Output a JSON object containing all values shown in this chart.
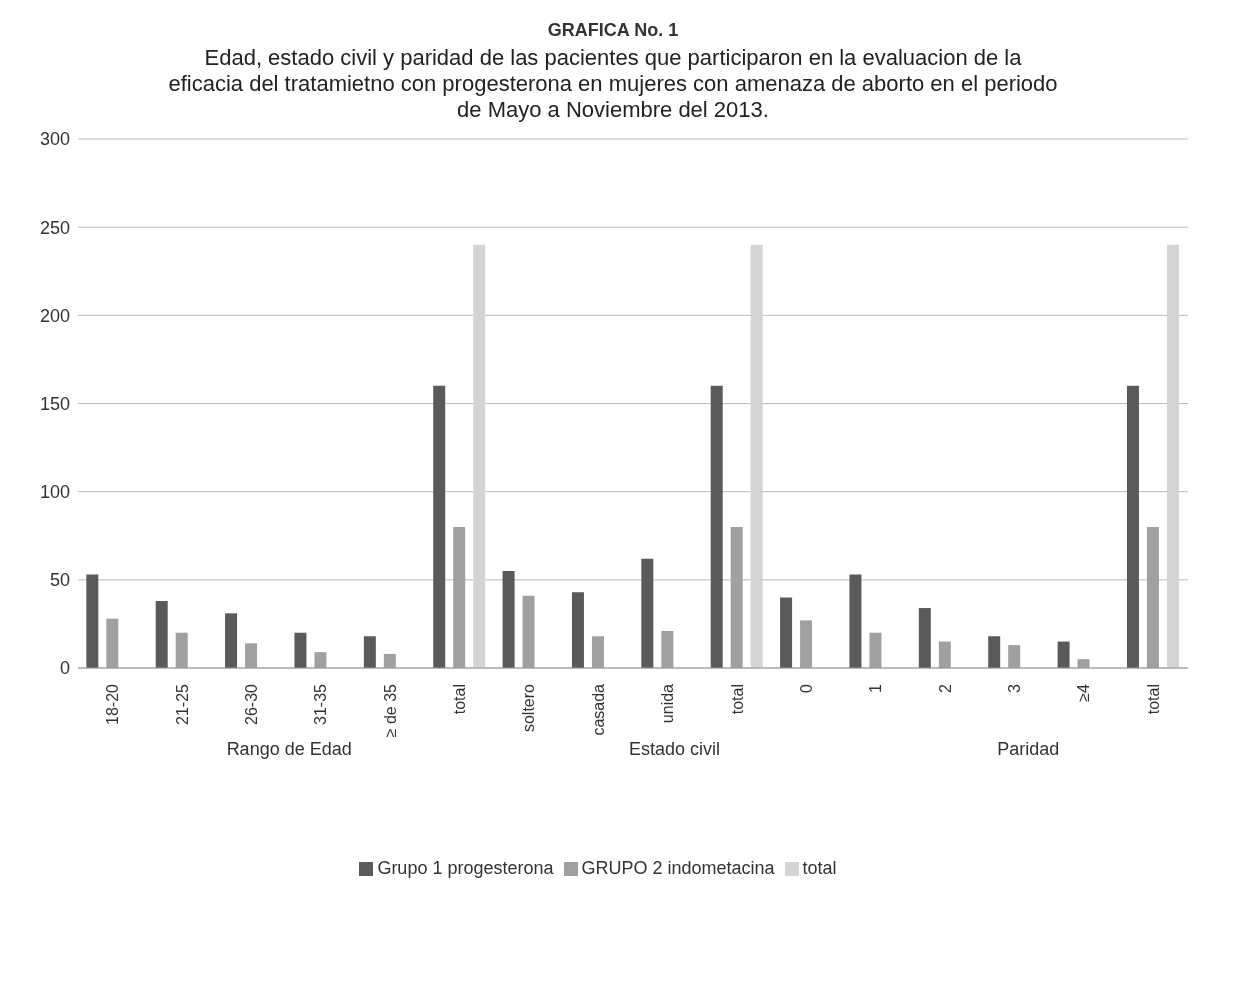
{
  "chart_data": {
    "type": "bar",
    "title": "GRAFICA  No. 1",
    "subtitle": "Edad, estado civil y paridad de las pacientes que participaron en la evaluacion de la eficacia  del  tratamietno  con progesterona en mujeres con amenaza de aborto  en el periodo de Mayo a Noviembre del 2013.",
    "categories": [
      "18-20",
      "21-25",
      "26-30",
      "31-35",
      "≥ de 35",
      "total",
      "soltero",
      "casada",
      "unida",
      "total",
      "0",
      "1",
      "2",
      "3",
      "≥4",
      "total"
    ],
    "series": [
      {
        "name": "Grupo 1 progesterona",
        "color": "#5a5a5a",
        "values": [
          53,
          38,
          31,
          20,
          18,
          160,
          55,
          43,
          62,
          160,
          40,
          53,
          34,
          18,
          15,
          160
        ]
      },
      {
        "name": "GRUPO 2 indometacina",
        "color": "#a0a0a0",
        "values": [
          28,
          20,
          14,
          9,
          8,
          80,
          41,
          18,
          21,
          80,
          27,
          20,
          15,
          13,
          5,
          80
        ]
      },
      {
        "name": "total",
        "color": "#d4d4d4",
        "values": [
          null,
          null,
          null,
          null,
          null,
          240,
          null,
          null,
          null,
          240,
          null,
          null,
          null,
          null,
          null,
          240
        ]
      }
    ],
    "ylim": [
      0,
      300
    ],
    "yticks": [
      0,
      50,
      100,
      150,
      200,
      250,
      300
    ],
    "grid": "y",
    "legend": "bottom",
    "annotations": [
      "Rango de Edad",
      "Estado civil",
      "Paridad"
    ]
  }
}
